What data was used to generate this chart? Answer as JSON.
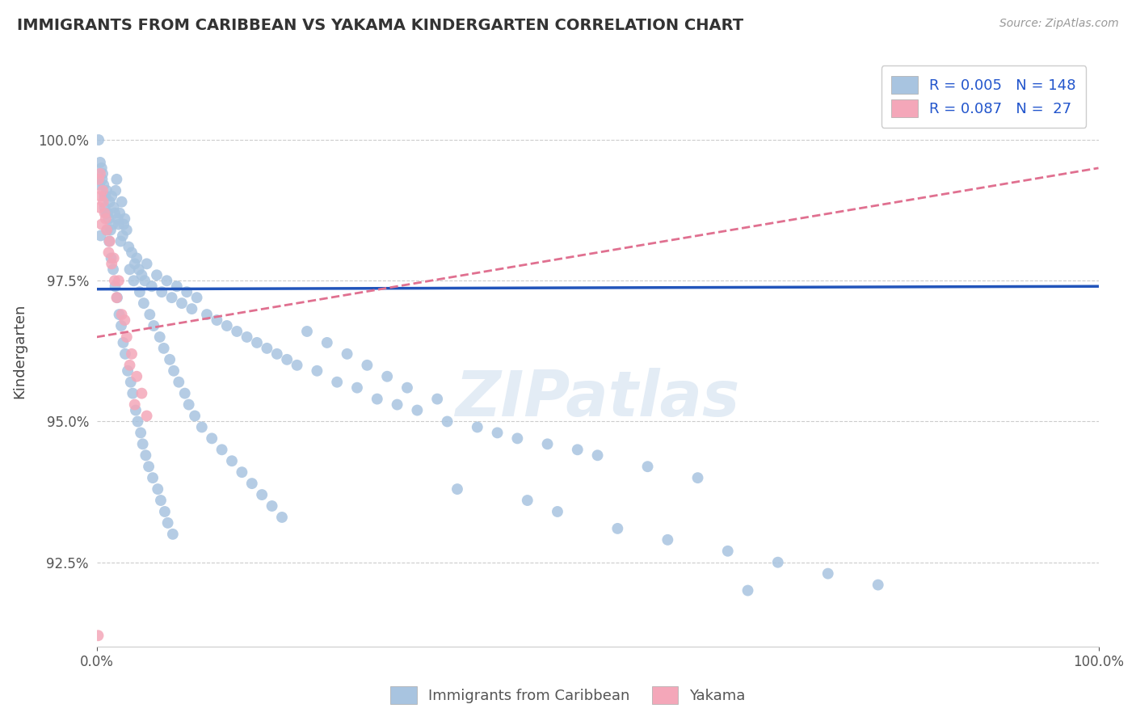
{
  "title": "IMMIGRANTS FROM CARIBBEAN VS YAKAMA KINDERGARTEN CORRELATION CHART",
  "source_text": "Source: ZipAtlas.com",
  "ylabel": "Kindergarten",
  "xlim": [
    0.0,
    100.0
  ],
  "ylim": [
    91.0,
    101.5
  ],
  "yticks": [
    92.5,
    95.0,
    97.5,
    100.0
  ],
  "ytick_labels": [
    "92.5%",
    "95.0%",
    "97.5%",
    "100.0%"
  ],
  "xticks": [
    0.0,
    100.0
  ],
  "xtick_labels": [
    "0.0%",
    "100.0%"
  ],
  "blue_color": "#a8c4e0",
  "pink_color": "#f4a7b9",
  "trend_blue_color": "#2255bb",
  "trend_pink_color": "#e07090",
  "watermark_text": "ZIPatlas",
  "legend_label_blue": "Immigrants from Caribbean",
  "legend_label_pink": "Yakama",
  "blue_scatter_x": [
    0.3,
    0.5,
    0.8,
    1.0,
    1.2,
    1.5,
    1.8,
    2.0,
    2.2,
    2.5,
    0.4,
    0.6,
    0.9,
    1.1,
    1.4,
    1.7,
    1.9,
    2.1,
    2.4,
    2.7,
    0.7,
    1.3,
    1.6,
    2.3,
    2.6,
    2.8,
    3.0,
    3.2,
    3.5,
    3.8,
    4.0,
    4.2,
    4.5,
    4.8,
    5.0,
    5.5,
    6.0,
    6.5,
    7.0,
    7.5,
    8.0,
    8.5,
    9.0,
    9.5,
    10.0,
    11.0,
    12.0,
    13.0,
    14.0,
    15.0,
    16.0,
    17.0,
    18.0,
    19.0,
    20.0,
    22.0,
    24.0,
    26.0,
    28.0,
    30.0,
    32.0,
    35.0,
    38.0,
    40.0,
    42.0,
    45.0,
    48.0,
    50.0,
    55.0,
    60.0,
    3.3,
    3.7,
    4.3,
    4.7,
    5.3,
    5.7,
    6.3,
    6.7,
    7.3,
    7.7,
    8.2,
    8.8,
    9.2,
    9.8,
    10.5,
    11.5,
    12.5,
    13.5,
    14.5,
    15.5,
    16.5,
    17.5,
    18.5,
    21.0,
    23.0,
    25.0,
    27.0,
    29.0,
    31.0,
    34.0,
    0.2,
    0.35,
    0.55,
    0.75,
    0.95,
    1.05,
    1.25,
    1.45,
    1.65,
    1.85,
    2.05,
    2.25,
    2.45,
    2.65,
    2.85,
    3.1,
    3.4,
    3.6,
    3.9,
    4.1,
    4.4,
    4.6,
    4.9,
    5.2,
    5.6,
    6.1,
    6.4,
    6.8,
    7.1,
    7.6,
    36.0,
    43.0,
    46.0,
    52.0,
    57.0,
    63.0,
    68.0,
    73.0,
    78.0,
    65.0
  ],
  "blue_scatter_y": [
    99.2,
    99.5,
    98.8,
    99.1,
    98.6,
    99.0,
    98.7,
    99.3,
    98.5,
    98.9,
    98.3,
    99.4,
    99.0,
    98.7,
    98.4,
    98.8,
    99.1,
    98.6,
    98.2,
    98.5,
    99.2,
    98.9,
    98.5,
    98.7,
    98.3,
    98.6,
    98.4,
    98.1,
    98.0,
    97.8,
    97.9,
    97.7,
    97.6,
    97.5,
    97.8,
    97.4,
    97.6,
    97.3,
    97.5,
    97.2,
    97.4,
    97.1,
    97.3,
    97.0,
    97.2,
    96.9,
    96.8,
    96.7,
    96.6,
    96.5,
    96.4,
    96.3,
    96.2,
    96.1,
    96.0,
    95.9,
    95.7,
    95.6,
    95.4,
    95.3,
    95.2,
    95.0,
    94.9,
    94.8,
    94.7,
    94.6,
    94.5,
    94.4,
    94.2,
    94.0,
    97.7,
    97.5,
    97.3,
    97.1,
    96.9,
    96.7,
    96.5,
    96.3,
    96.1,
    95.9,
    95.7,
    95.5,
    95.3,
    95.1,
    94.9,
    94.7,
    94.5,
    94.3,
    94.1,
    93.9,
    93.7,
    93.5,
    93.3,
    96.6,
    96.4,
    96.2,
    96.0,
    95.8,
    95.6,
    95.4,
    100.0,
    99.6,
    99.3,
    99.0,
    98.7,
    98.4,
    98.2,
    97.9,
    97.7,
    97.4,
    97.2,
    96.9,
    96.7,
    96.4,
    96.2,
    95.9,
    95.7,
    95.5,
    95.2,
    95.0,
    94.8,
    94.6,
    94.4,
    94.2,
    94.0,
    93.8,
    93.6,
    93.4,
    93.2,
    93.0,
    93.8,
    93.6,
    93.4,
    93.1,
    92.9,
    92.7,
    92.5,
    92.3,
    92.1,
    92.0
  ],
  "pink_scatter_x": [
    0.2,
    0.3,
    0.4,
    0.5,
    0.6,
    0.8,
    1.0,
    1.2,
    1.5,
    1.8,
    2.0,
    2.5,
    3.0,
    3.5,
    4.0,
    4.5,
    5.0,
    0.35,
    0.65,
    0.9,
    1.3,
    1.7,
    2.2,
    2.8,
    3.3,
    3.8,
    0.15
  ],
  "pink_scatter_y": [
    99.3,
    98.8,
    99.0,
    98.5,
    99.1,
    98.7,
    98.4,
    98.0,
    97.8,
    97.5,
    97.2,
    96.9,
    96.5,
    96.2,
    95.8,
    95.5,
    95.1,
    99.4,
    98.9,
    98.6,
    98.2,
    97.9,
    97.5,
    96.8,
    96.0,
    95.3,
    91.2
  ],
  "blue_trend_x": [
    0.0,
    100.0
  ],
  "blue_trend_y": [
    97.35,
    97.4
  ],
  "pink_trend_x": [
    0.0,
    100.0
  ],
  "pink_trend_y": [
    96.5,
    99.5
  ]
}
